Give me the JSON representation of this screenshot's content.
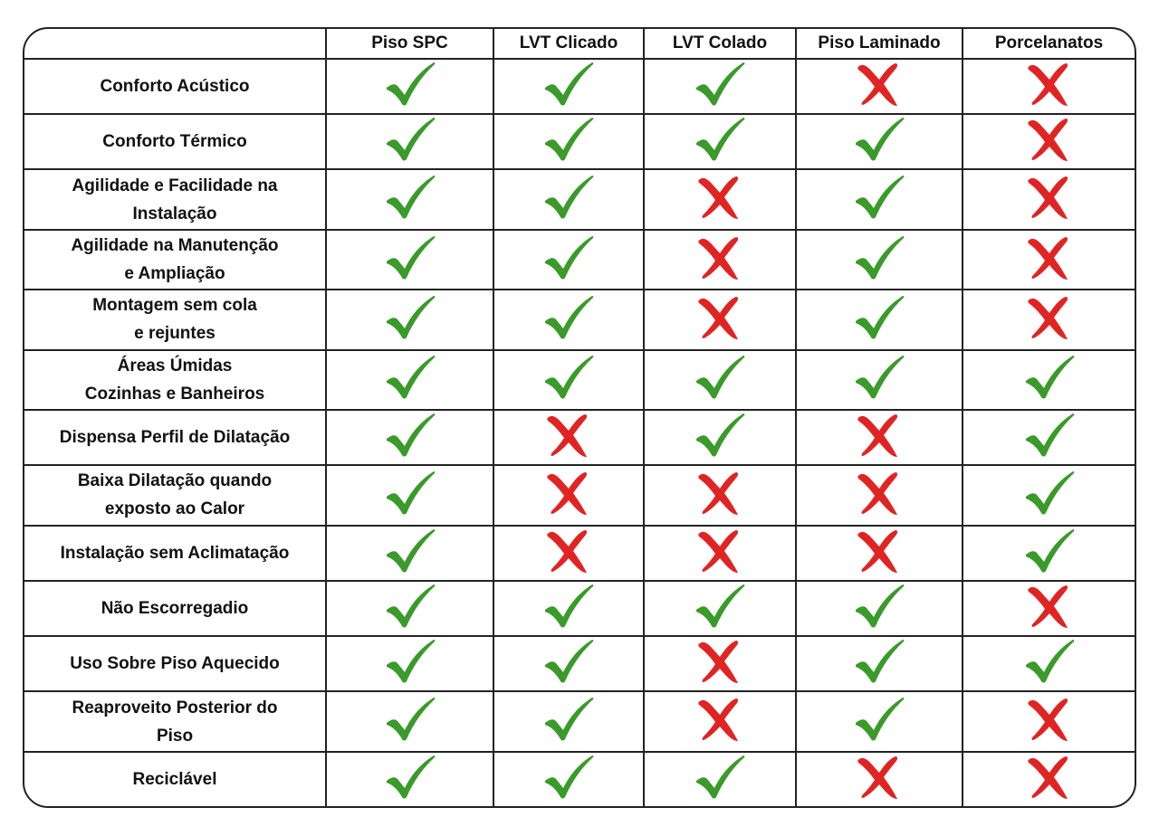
{
  "colors": {
    "yes": "#3a9a2a",
    "no": "#e02424",
    "border": "#222222"
  },
  "header": {
    "corner": "",
    "columns": [
      "Piso SPC",
      "LVT Clicado",
      "LVT Colado",
      "Piso Laminado",
      "Porcelanatos"
    ]
  },
  "rows": [
    {
      "label": "Conforto Acústico",
      "values": [
        "check",
        "check",
        "check",
        "cross",
        "cross"
      ]
    },
    {
      "label": "Conforto Térmico",
      "values": [
        "check",
        "check",
        "check",
        "check",
        "cross"
      ]
    },
    {
      "label": "Agilidade e Facilidade na\nInstalação",
      "values": [
        "check",
        "check",
        "cross",
        "check",
        "cross"
      ]
    },
    {
      "label": "Agilidade na Manutenção\ne Ampliação",
      "values": [
        "check",
        "check",
        "cross",
        "check",
        "cross"
      ]
    },
    {
      "label": "Montagem sem cola\ne rejuntes",
      "values": [
        "check",
        "check",
        "cross",
        "check",
        "cross"
      ]
    },
    {
      "label": "Áreas Úmidas\nCozinhas e Banheiros",
      "values": [
        "check",
        "check",
        "check",
        "check",
        "check"
      ]
    },
    {
      "label": "Dispensa Perfil de Dilatação",
      "values": [
        "check",
        "cross",
        "check",
        "cross",
        "check"
      ]
    },
    {
      "label": "Baixa Dilatação quando\nexposto ao Calor",
      "values": [
        "check",
        "cross",
        "cross",
        "cross",
        "check"
      ]
    },
    {
      "label": "Instalação sem Aclimatação",
      "values": [
        "check",
        "cross",
        "cross",
        "cross",
        "check"
      ]
    },
    {
      "label": "Não Escorregadio",
      "values": [
        "check",
        "check",
        "check",
        "check",
        "cross"
      ]
    },
    {
      "label": "Uso Sobre Piso Aquecido",
      "values": [
        "check",
        "check",
        "cross",
        "check",
        "check"
      ]
    },
    {
      "label": "Reaproveito Posterior do\nPiso",
      "values": [
        "check",
        "check",
        "cross",
        "check",
        "cross"
      ]
    },
    {
      "label": "Reciclável",
      "values": [
        "check",
        "check",
        "check",
        "cross",
        "cross"
      ]
    }
  ]
}
